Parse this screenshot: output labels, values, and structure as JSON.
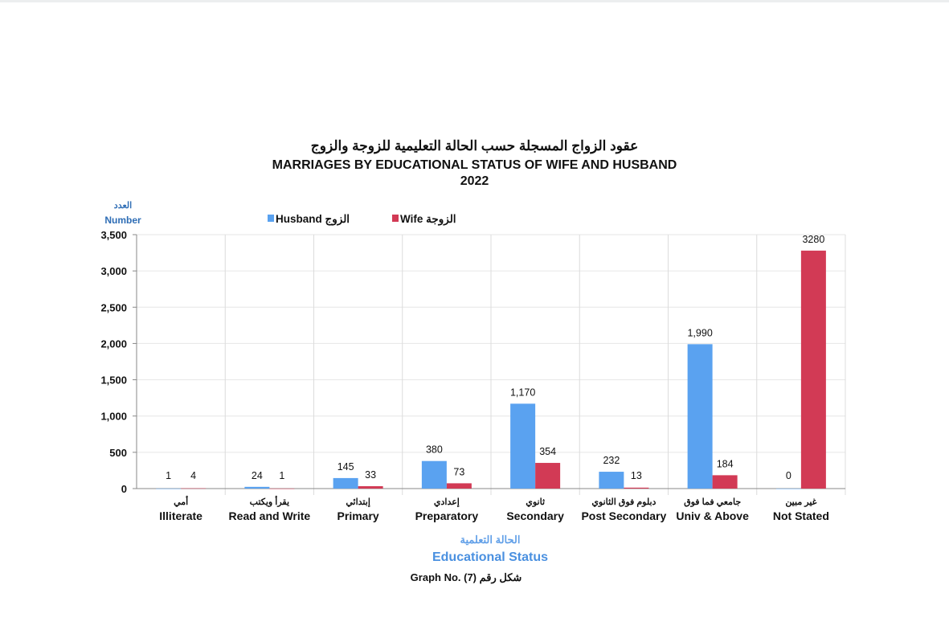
{
  "chart_data": {
    "type": "bar",
    "title_ar": "عقود الزواج المسجلة حسب الحالة التعليمية للزوجة والزوج",
    "title": "MARRIAGES BY EDUCATIONAL STATUS OF WIFE AND HUSBAND",
    "subtitle": "2022",
    "ylabel_ar": "العدد",
    "ylabel": "Number",
    "xlabel_ar": "الحالة التعلمية",
    "xlabel": "Educational Status",
    "caption": "Graph No. (7) شكل رقم",
    "ylim": [
      0,
      3500
    ],
    "yticks": [
      0,
      500,
      1000,
      1500,
      2000,
      2500,
      3000,
      3500
    ],
    "ytick_labels": [
      "0",
      "500",
      "1,000",
      "1,500",
      "2,000",
      "2,500",
      "3,000",
      "3,500"
    ],
    "categories": [
      "Illiterate",
      "Read and Write",
      "Primary",
      "Preparatory",
      "Secondary",
      "Post Secondary",
      "Univ & Above",
      "Not Stated"
    ],
    "categories_ar": [
      "أمي",
      "يقرأ ويكتب",
      "إبتدائي",
      "إعدادي",
      "ثانوي",
      "دبلوم فوق الثانوي",
      "جامعي فما فوق",
      "غير مبين"
    ],
    "legend_position": "top",
    "grid": true,
    "series": [
      {
        "name": "Husband الزوج",
        "color": "#5aa2f0",
        "values": [
          1,
          24,
          145,
          380,
          1170,
          232,
          1990,
          0
        ],
        "labels": [
          "1",
          "24",
          "145",
          "380",
          "1,170",
          "232",
          "1,990",
          "0"
        ]
      },
      {
        "name": "Wife الزوجة",
        "color": "#d23a55",
        "values": [
          4,
          1,
          33,
          73,
          354,
          13,
          184,
          3280
        ],
        "labels": [
          "4",
          "1",
          "33",
          "73",
          "354",
          "13",
          "184",
          "3280"
        ]
      }
    ]
  }
}
